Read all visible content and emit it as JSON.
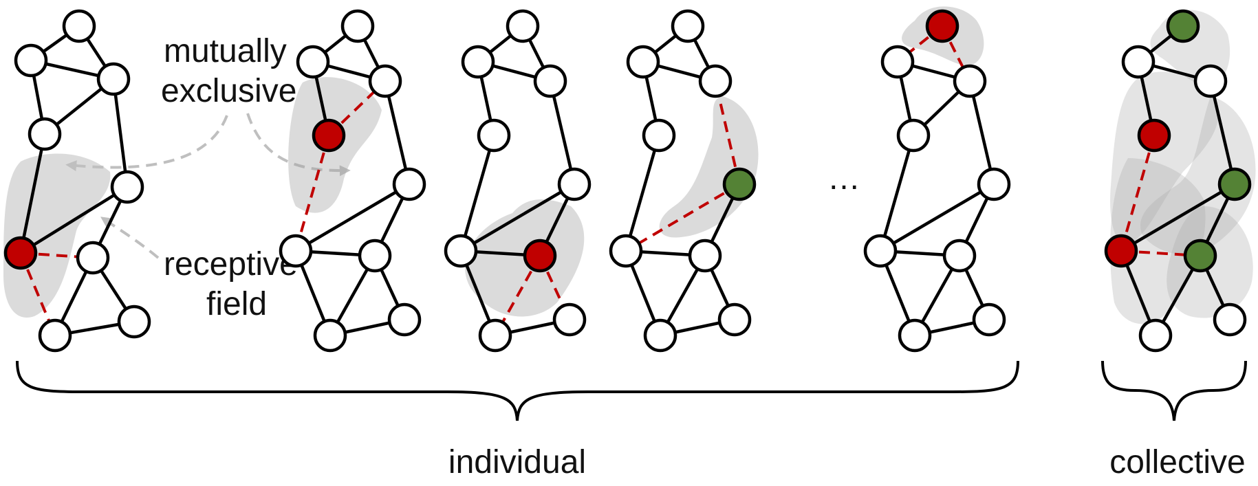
{
  "labels": {
    "mutually_exclusive_line1": "mutually",
    "mutually_exclusive_line2": "exclusive",
    "receptive_field_line1": "receptive",
    "receptive_field_line2": "field",
    "ellipsis": "…",
    "individual": "individual",
    "collective": "collective"
  },
  "colors": {
    "selected_red": "#c00000",
    "selected_green": "#548235",
    "unselected": "#ffffff",
    "region": "#a6a6a6",
    "arrow": "#bfbfbf",
    "dashed_edge": "#c00000"
  },
  "graphs": [
    {
      "id": "left",
      "group": "individual",
      "states": {
        "9": "red"
      },
      "receptive_center": 9
    },
    {
      "id": "panel-1",
      "group": "individual",
      "states": {
        "4": "red"
      },
      "receptive_center": 4
    },
    {
      "id": "panel-2",
      "group": "individual",
      "states": {
        "10": "red"
      },
      "receptive_center": 10
    },
    {
      "id": "panel-3",
      "group": "individual",
      "states": {
        "5": "green"
      },
      "receptive_center": 5
    },
    {
      "id": "panel-4",
      "group": "individual",
      "states": {
        "0": "red"
      },
      "receptive_center": 0
    },
    {
      "id": "collective",
      "group": "collective",
      "states": {
        "0": "green",
        "4": "red",
        "5": "green",
        "9": "red",
        "10": "green"
      }
    }
  ]
}
